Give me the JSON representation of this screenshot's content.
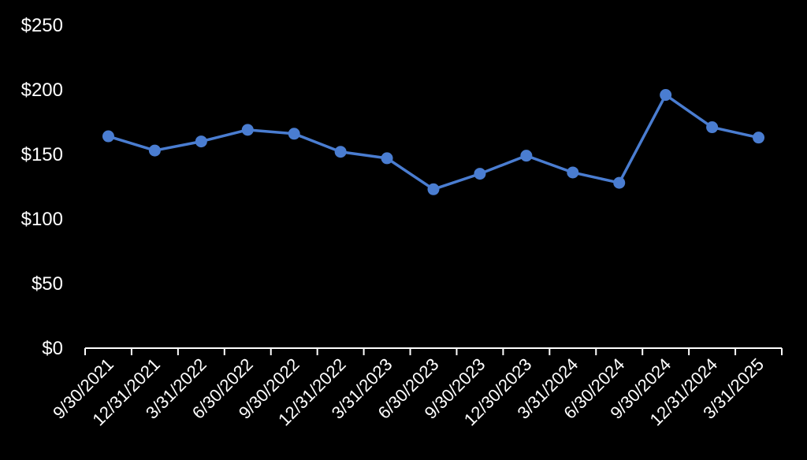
{
  "chart_data": {
    "type": "line",
    "title": "",
    "xlabel": "",
    "ylabel": "",
    "categories": [
      "9/30/2021",
      "12/31/2021",
      "3/31/2022",
      "6/30/2022",
      "9/30/2022",
      "12/31/2022",
      "3/31/2023",
      "6/30/2023",
      "9/30/2023",
      "12/30/2023",
      "3/31/2024",
      "6/30/2024",
      "9/30/2024",
      "12/31/2024",
      "3/31/2025"
    ],
    "series": [
      {
        "values": [
          164,
          153,
          160,
          169,
          166,
          152,
          147,
          123,
          135,
          149,
          136,
          128,
          196,
          171,
          163
        ],
        "color": "#4a7dd1"
      }
    ],
    "yticks": [
      {
        "value": 0,
        "label": "$0"
      },
      {
        "value": 50,
        "label": "$50"
      },
      {
        "value": 100,
        "label": "$100"
      },
      {
        "value": 150,
        "label": "$150"
      },
      {
        "value": 200,
        "label": "$200"
      },
      {
        "value": 250,
        "label": "$250"
      }
    ],
    "ylim": [
      0,
      250
    ],
    "grid": false,
    "legend": "none",
    "background": "#000000",
    "axis_color": "#ffffff",
    "text_color": "#ffffff"
  }
}
